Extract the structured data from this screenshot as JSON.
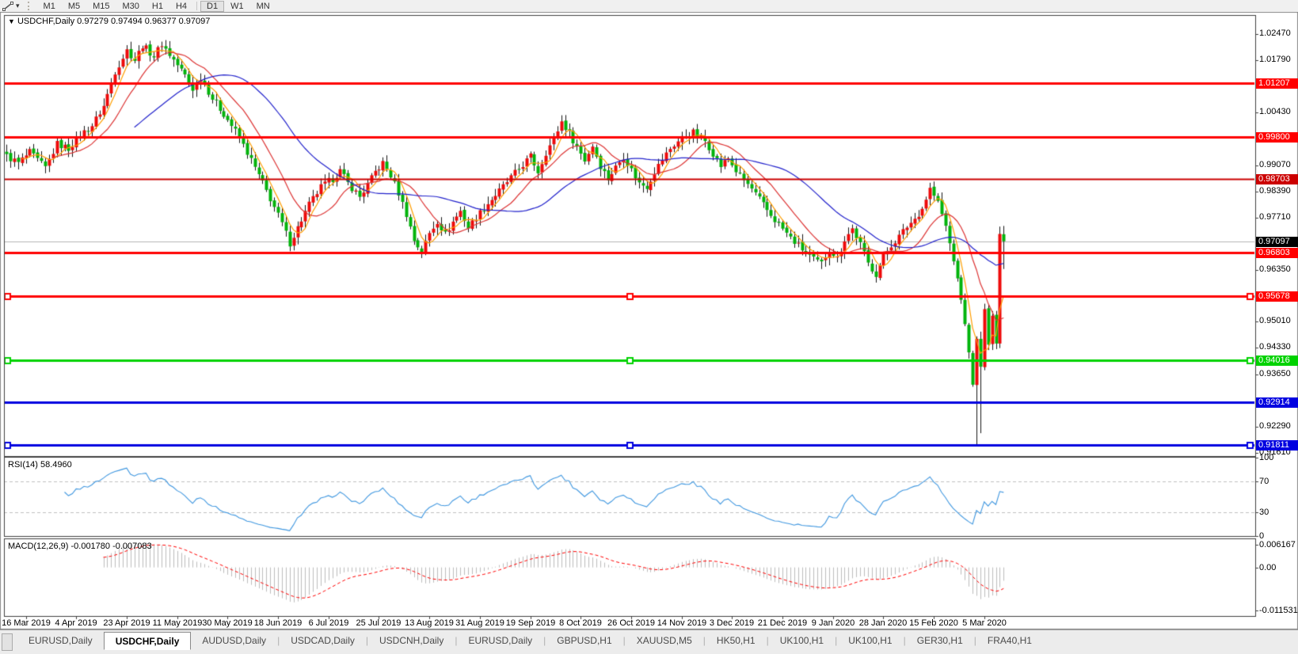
{
  "toolbar": {
    "tool_icon": "line-studies-icon",
    "caret": "▾",
    "timeframes": [
      {
        "label": "M1",
        "active": false
      },
      {
        "label": "M5",
        "active": false
      },
      {
        "label": "M15",
        "active": false
      },
      {
        "label": "M30",
        "active": false
      },
      {
        "label": "H1",
        "active": false
      },
      {
        "label": "H4",
        "active": false
      },
      {
        "label": "D1",
        "active": true
      },
      {
        "label": "W1",
        "active": false
      },
      {
        "label": "MN",
        "active": false
      }
    ]
  },
  "header": {
    "caret": "▼",
    "symbol": "USDCHF,Daily",
    "ohlc": "0.97279 0.97494 0.96377 0.97097"
  },
  "rsi_panel": {
    "label": "RSI(14)",
    "value": "58.4960"
  },
  "macd_panel": {
    "label": "MACD(12,26,9)",
    "values": "-0.001780 -0.007083"
  },
  "chart_data": {
    "type": "candlestick",
    "symbol": "USDCHF",
    "timeframe": "Daily",
    "last_bar": {
      "open": 0.97279,
      "high": 0.97494,
      "low": 0.96377,
      "close": 0.97097
    },
    "ylim": [
      0.91527,
      1.02942
    ],
    "price_axis": {
      "ticks": [
        1.0247,
        1.0179,
        1.0043,
        0.9907,
        0.9839,
        0.9771,
        0.9635,
        0.9501,
        0.9433,
        0.9365,
        0.9229,
        0.9161
      ],
      "current_price_badge": {
        "price": 0.97097,
        "bg": "#000000",
        "fg": "#ffffff"
      }
    },
    "x_axis": {
      "dates": [
        "16 Mar 2019",
        "4 Apr 2019",
        "23 Apr 2019",
        "11 May 2019",
        "30 May 2019",
        "18 Jun 2019",
        "6 Jul 2019",
        "25 Jul 2019",
        "13 Aug 2019",
        "31 Aug 2019",
        "19 Sep 2019",
        "8 Oct 2019",
        "26 Oct 2019",
        "14 Nov 2019",
        "3 Dec 2019",
        "21 Dec 2019",
        "9 Jan 2020",
        "28 Jan 2020",
        "15 Feb 2020",
        "5 Mar 2020"
      ],
      "first_label_index": 5,
      "label_every": 13
    },
    "horizontal_lines": [
      {
        "price": 1.01207,
        "color": "#ff0000",
        "width": 3,
        "selected": false
      },
      {
        "price": 0.998,
        "color": "#ff0000",
        "width": 3,
        "selected": false
      },
      {
        "price": 0.98703,
        "color": "#cc0000",
        "width": 2,
        "selected": false
      },
      {
        "price": 0.96803,
        "color": "#ff0000",
        "width": 3,
        "selected": false
      },
      {
        "price": 0.95678,
        "color": "#ff0000",
        "width": 3,
        "selected": true
      },
      {
        "price": 0.94016,
        "color": "#00d200",
        "width": 3,
        "selected": true
      },
      {
        "price": 0.92914,
        "color": "#0000e0",
        "width": 3,
        "selected": false
      },
      {
        "price": 0.91811,
        "color": "#0000e0",
        "width": 3,
        "selected": true
      }
    ],
    "moving_averages": [
      {
        "period": 5,
        "color": "#ff9e00"
      },
      {
        "period": 13,
        "color": "#dd3333"
      },
      {
        "period": 34,
        "color": "#2222cc"
      }
    ],
    "candles": {
      "count": 258,
      "up_color": "#ee0a0a",
      "down_color": "#00b40a",
      "wick_color": "#151515",
      "anchors": [
        [
          0,
          0.993
        ],
        [
          3,
          0.9913
        ],
        [
          6,
          0.994
        ],
        [
          10,
          0.99
        ],
        [
          13,
          0.9962
        ],
        [
          16,
          0.995
        ],
        [
          19,
          0.9985
        ],
        [
          22,
          1.001
        ],
        [
          25,
          1.006
        ],
        [
          28,
          1.015
        ],
        [
          31,
          1.0205
        ],
        [
          33,
          1.018
        ],
        [
          35,
          1.0218
        ],
        [
          38,
          1.019
        ],
        [
          40,
          1.0222
        ],
        [
          43,
          1.018
        ],
        [
          46,
          1.014
        ],
        [
          48,
          1.0105
        ],
        [
          50,
          1.0135
        ],
        [
          53,
          1.008
        ],
        [
          56,
          1.004
        ],
        [
          59,
          0.9995
        ],
        [
          62,
          0.994
        ],
        [
          65,
          0.988
        ],
        [
          68,
          0.982
        ],
        [
          71,
          0.9755
        ],
        [
          73,
          0.9705
        ],
        [
          75,
          0.9745
        ],
        [
          78,
          0.9805
        ],
        [
          81,
          0.985
        ],
        [
          84,
          0.9872
        ],
        [
          86,
          0.9892
        ],
        [
          88,
          0.986
        ],
        [
          91,
          0.9825
        ],
        [
          93,
          0.9855
        ],
        [
          95,
          0.989
        ],
        [
          97,
          0.9912
        ],
        [
          99,
          0.988
        ],
        [
          101,
          0.9835
        ],
        [
          103,
          0.978
        ],
        [
          105,
          0.9712
        ],
        [
          107,
          0.9682
        ],
        [
          109,
          0.973
        ],
        [
          111,
          0.9762
        ],
        [
          113,
          0.9728
        ],
        [
          115,
          0.976
        ],
        [
          117,
          0.9788
        ],
        [
          119,
          0.9745
        ],
        [
          121,
          0.9772
        ],
        [
          124,
          0.9808
        ],
        [
          127,
          0.984
        ],
        [
          130,
          0.9875
        ],
        [
          133,
          0.9908
        ],
        [
          135,
          0.993
        ],
        [
          137,
          0.989
        ],
        [
          139,
          0.994
        ],
        [
          141,
          0.9975
        ],
        [
          143,
          1.002
        ],
        [
          145,
          0.999
        ],
        [
          147,
          0.9955
        ],
        [
          149,
          0.992
        ],
        [
          151,
          0.9958
        ],
        [
          153,
          0.9905
        ],
        [
          155,
          0.9872
        ],
        [
          157,
          0.9902
        ],
        [
          159,
          0.993
        ],
        [
          161,
          0.9895
        ],
        [
          163,
          0.986
        ],
        [
          165,
          0.9852
        ],
        [
          167,
          0.989
        ],
        [
          169,
          0.9922
        ],
        [
          171,
          0.995
        ],
        [
          174,
          0.9978
        ],
        [
          177,
          0.9992
        ],
        [
          180,
          0.997
        ],
        [
          182,
          0.9938
        ],
        [
          184,
          0.9905
        ],
        [
          186,
          0.9925
        ],
        [
          188,
          0.9892
        ],
        [
          190,
          0.9868
        ],
        [
          192,
          0.9845
        ],
        [
          194,
          0.9818
        ],
        [
          196,
          0.979
        ],
        [
          198,
          0.9765
        ],
        [
          200,
          0.9742
        ],
        [
          202,
          0.9718
        ],
        [
          204,
          0.9698
        ],
        [
          206,
          0.968
        ],
        [
          208,
          0.9662
        ],
        [
          210,
          0.9652
        ],
        [
          212,
          0.969
        ],
        [
          214,
          0.9665
        ],
        [
          216,
          0.9715
        ],
        [
          218,
          0.9742
        ],
        [
          220,
          0.9702
        ],
        [
          222,
          0.9652
        ],
        [
          224,
          0.9625
        ],
        [
          226,
          0.967
        ],
        [
          228,
          0.97
        ],
        [
          230,
          0.9722
        ],
        [
          232,
          0.9748
        ],
        [
          234,
          0.9768
        ],
        [
          236,
          0.9795
        ],
        [
          238,
          0.9846
        ],
        [
          240,
          0.981
        ],
        [
          242,
          0.9748
        ],
        [
          244,
          0.966
        ],
        [
          246,
          0.956
        ],
        [
          248,
          0.9425
        ],
        [
          249,
          0.9335
        ],
        [
          250,
          0.9455
        ],
        [
          251,
          0.9385
        ],
        [
          252,
          0.953
        ],
        [
          253,
          0.9445
        ],
        [
          254,
          0.952
        ],
        [
          255,
          0.9445
        ],
        [
          256,
          0.9728
        ],
        [
          257,
          0.971
        ]
      ],
      "wick_overrides": {
        "250": {
          "low": 0.9182
        },
        "251": {
          "low": 0.9212
        }
      }
    },
    "indicators": {
      "rsi": {
        "period": 14,
        "current": 58.496,
        "levels": [
          70,
          30
        ],
        "axis_ticks": [
          100,
          70,
          30,
          0
        ],
        "line_color": "#3f97e0",
        "level_color": "#c0c0c0"
      },
      "macd": {
        "fast": 12,
        "slow": 26,
        "signal": 9,
        "current": -0.00178,
        "signal_current": -0.007083,
        "axis_ticks": [
          {
            "v": 0.006167,
            "label": "0.006167"
          },
          {
            "v": 0,
            "label": "0.00"
          },
          {
            "v": -0.011531,
            "label": "-0.011531"
          }
        ],
        "ylim": [
          -0.01302,
          0.00756
        ],
        "hist_color": "#bdbdbd",
        "signal_color": "#ff0000"
      }
    },
    "bid_line_color": "#b4b4b4"
  },
  "tabs": [
    {
      "label": "EURUSD,Daily",
      "active": false
    },
    {
      "label": "USDCHF,Daily",
      "active": true
    },
    {
      "label": "AUDUSD,Daily",
      "active": false
    },
    {
      "label": "USDCAD,Daily",
      "active": false
    },
    {
      "label": "USDCNH,Daily",
      "active": false
    },
    {
      "label": "EURUSD,Daily",
      "active": false
    },
    {
      "label": "GBPUSD,H1",
      "active": false
    },
    {
      "label": "XAUUSD,M5",
      "active": false
    },
    {
      "label": "HK50,H1",
      "active": false
    },
    {
      "label": "UK100,H1",
      "active": false
    },
    {
      "label": "UK100,H1",
      "active": false
    },
    {
      "label": "GER30,H1",
      "active": false
    },
    {
      "label": "FRA40,H1",
      "active": false
    }
  ]
}
